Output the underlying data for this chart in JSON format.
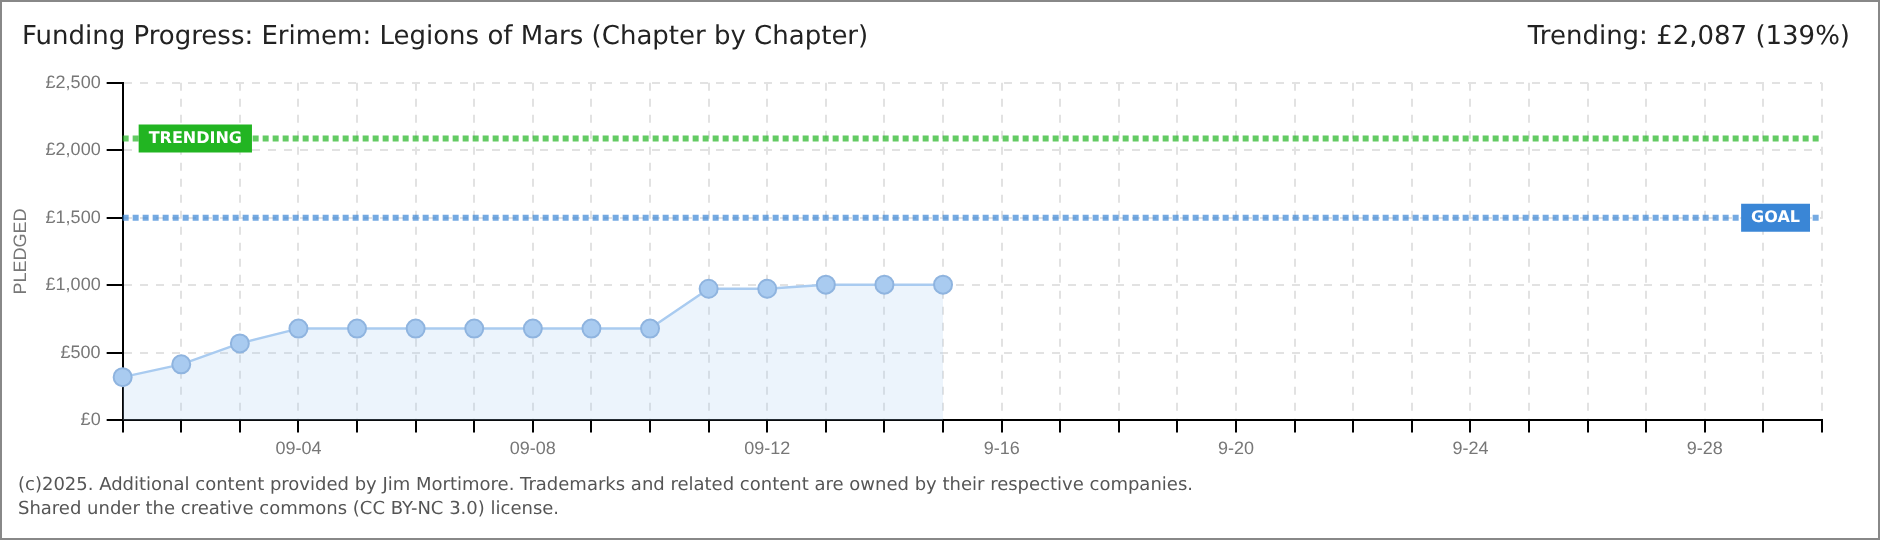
{
  "chart_data": {
    "type": "area",
    "title": "Funding Progress: Erimem: Legions of Mars (Chapter by Chapter)",
    "subtitle": "Trending: £2,087 (139%)",
    "ylabel": "PLEDGED",
    "categories": [
      null,
      null,
      null,
      "09-04",
      null,
      null,
      null,
      "09-08",
      null,
      null,
      null,
      "09-12",
      null,
      null,
      null,
      "9-16",
      null,
      null,
      null,
      "9-20",
      null,
      null,
      null,
      "9-24",
      null,
      null,
      null,
      "9-28",
      null,
      null
    ],
    "series": [
      {
        "color": "#a9cbf0",
        "values": [
          320,
          415,
          570,
          680,
          680,
          680,
          680,
          680,
          680,
          680,
          975,
          975,
          1005,
          1005,
          1005,
          null,
          null,
          null,
          null,
          null,
          null,
          null,
          null,
          null,
          null,
          null,
          null,
          null,
          null,
          null
        ]
      }
    ],
    "ylim": [
      0,
      2500
    ],
    "yticks": [
      {
        "value": 0,
        "label": "£0"
      },
      {
        "value": 500,
        "label": "£500"
      },
      {
        "value": 1000,
        "label": "£1,000"
      },
      {
        "value": 1500,
        "label": "£1,500"
      },
      {
        "value": 2000,
        "label": "£2,000"
      },
      {
        "value": 2500,
        "label": "£2,500"
      }
    ],
    "grid": true,
    "marker": "circle",
    "line_style": "solid",
    "ref_lines": [
      {
        "axis": "y",
        "value": 2087,
        "label": "TRENDING",
        "color": "#22b522"
      },
      {
        "axis": "y",
        "value": 1500,
        "label": "GOAL",
        "color": "#3a86d6"
      }
    ],
    "annotations": [
      "(c)2025. Additional content provided by Jim Mortimore. Trademarks and related content are owned by their respective companies.",
      "Shared under the creative commons (CC BY-NC 3.0) license."
    ]
  }
}
